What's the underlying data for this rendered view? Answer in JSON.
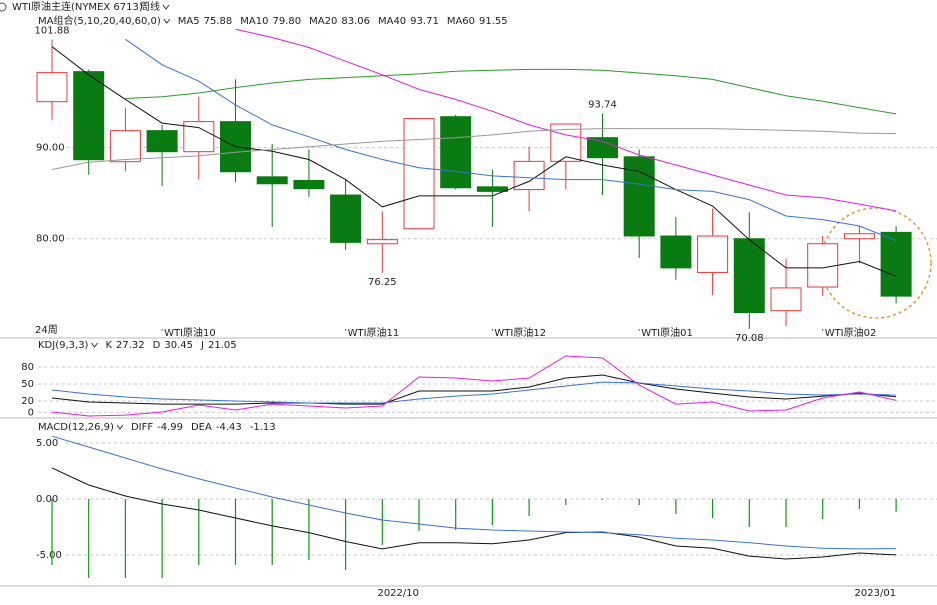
{
  "header": {
    "title": "WTI原油主连(NYMEX 6713)",
    "period": "周线"
  },
  "chart_data": [
    {
      "type": "candlestick",
      "title": "MA组合(5,10,20,40,60,0)",
      "period_label": "24周",
      "categories": [
        null,
        null,
        null,
        "WTI原油10",
        null,
        null,
        null,
        null,
        "WTI原油11",
        null,
        null,
        null,
        "WTI原油12",
        null,
        null,
        null,
        "WTI原油01",
        null,
        null,
        null,
        null,
        "WTI原油02",
        null,
        null
      ],
      "open": [
        95.05,
        98.35,
        88.46,
        91.87,
        89.56,
        92.86,
        86.8,
        86.4,
        84.8,
        79.45,
        81.1,
        93.4,
        85.7,
        85.4,
        88.5,
        91.1,
        89.0,
        80.3,
        76.3,
        80.0,
        72.1,
        74.7,
        80.0,
        80.7
      ],
      "high": [
        101.88,
        98.57,
        94.4,
        92.5,
        95.6,
        97.5,
        90.4,
        89.8,
        86.5,
        83.0,
        93.2,
        93.6,
        87.6,
        90.1,
        92.64,
        93.74,
        89.8,
        82.4,
        83.3,
        82.9,
        77.8,
        80.3,
        81.4,
        81.4
      ],
      "low": [
        93.08,
        87.03,
        87.4,
        85.8,
        86.5,
        86.2,
        81.3,
        84.6,
        78.8,
        76.25,
        81.1,
        85.4,
        81.3,
        83.0,
        85.4,
        84.8,
        77.9,
        75.5,
        73.8,
        70.08,
        70.4,
        73.7,
        77.3,
        72.9
      ],
      "close": [
        98.24,
        88.68,
        91.87,
        89.56,
        92.86,
        87.36,
        86.04,
        85.5,
        79.6,
        79.9,
        93.2,
        85.6,
        85.2,
        88.5,
        92.6,
        88.9,
        80.3,
        76.8,
        80.3,
        71.9,
        74.6,
        79.45,
        80.55,
        73.7
      ],
      "up_color": "#e8383d",
      "down_color": "#0a7a12",
      "series": [
        {
          "name": "MA5",
          "color": "#111111",
          "values": [
            101.1,
            98.0,
            95.3,
            92.7,
            92.2,
            90.1,
            89.6,
            88.7,
            86.5,
            83.5,
            84.7,
            84.7,
            84.7,
            86.3,
            89.0,
            88.1,
            87.4,
            85.4,
            83.6,
            79.9,
            76.8,
            76.8,
            77.5,
            75.88
          ]
        },
        {
          "name": "MA10",
          "color": "#3a73d8",
          "values": [
            null,
            null,
            101.9,
            99.1,
            97.3,
            94.7,
            92.5,
            91.2,
            89.8,
            88.7,
            87.8,
            87.4,
            86.9,
            86.7,
            86.5,
            86.5,
            86.0,
            85.4,
            85.2,
            84.3,
            82.5,
            82.1,
            81.4,
            79.8
          ],
          "value_labels": [
            null,
            null,
            null,
            null,
            null,
            null,
            null,
            null,
            null,
            null,
            null,
            null,
            null,
            null,
            null,
            null,
            null,
            null,
            null,
            null,
            null,
            null,
            null,
            "79.80"
          ]
        },
        {
          "name": "MA20",
          "color": "#e020e0",
          "values": [
            null,
            null,
            null,
            null,
            null,
            103.0,
            102.1,
            101.0,
            99.5,
            98.0,
            96.4,
            95.3,
            94.0,
            92.5,
            91.4,
            90.7,
            89.2,
            88.1,
            87.0,
            85.9,
            84.8,
            84.5,
            83.8,
            83.06
          ]
        },
        {
          "name": "MA40",
          "color": "#2a9a2a",
          "values": [
            null,
            null,
            95.4,
            95.6,
            96.0,
            96.6,
            97.1,
            97.5,
            97.7,
            97.9,
            98.1,
            98.4,
            98.5,
            98.6,
            98.6,
            98.5,
            98.2,
            97.9,
            97.5,
            96.6,
            95.7,
            95.1,
            94.4,
            93.71
          ]
        },
        {
          "name": "MA60",
          "color": "#999999",
          "values": [
            87.6,
            88.4,
            88.7,
            88.9,
            89.1,
            89.5,
            89.8,
            90.1,
            90.4,
            90.7,
            90.9,
            91.1,
            91.4,
            91.8,
            92.0,
            92.1,
            92.1,
            92.1,
            92.1,
            92.0,
            91.9,
            91.8,
            91.6,
            91.55
          ]
        }
      ],
      "ylim": [
        69.1,
        104.9
      ],
      "yticks": [
        {
          "value": 80,
          "label": "80.00"
        },
        {
          "value": 90,
          "label": "90.00"
        }
      ],
      "grid": true
    },
    {
      "type": "line",
      "title": "KDJ(9,3,3)",
      "series": [
        {
          "name": "K",
          "color": "#111111",
          "values": [
            25.2,
            18.2,
            16.4,
            14.6,
            14.6,
            14.6,
            16.4,
            16.4,
            14.6,
            14.6,
            37.6,
            37.6,
            37.6,
            44.6,
            60.5,
            65.8,
            51.7,
            41.1,
            34.0,
            27.0,
            23.5,
            28.7,
            34.0,
            27.32
          ]
        },
        {
          "name": "D",
          "color": "#3a73d8",
          "values": [
            39.3,
            32.3,
            27.0,
            23.5,
            21.7,
            19.9,
            18.2,
            16.4,
            16.4,
            16.4,
            23.5,
            28.7,
            32.3,
            39.3,
            46.4,
            53.4,
            51.7,
            46.4,
            41.1,
            37.6,
            32.3,
            30.5,
            32.3,
            30.45
          ]
        },
        {
          "name": "J",
          "color": "#e020e0",
          "values": [
            0.5,
            -6.5,
            -4.8,
            0.5,
            12.9,
            4.1,
            14.6,
            11.1,
            7.6,
            11.1,
            62.3,
            60.5,
            55.2,
            60.5,
            99.3,
            95.8,
            48.1,
            14.6,
            18.2,
            2.3,
            4.1,
            25.2,
            35.8,
            21.05
          ]
        }
      ],
      "ylim": [
        -10,
        106.4
      ],
      "yticks": [
        0,
        20,
        50,
        80
      ],
      "grid": true
    },
    {
      "type": "line",
      "title": "MACD(12,26,9)",
      "categories": [
        null,
        null,
        null,
        null,
        null,
        null,
        null,
        null,
        null,
        null,
        "2022/10",
        null,
        null,
        null,
        null,
        null,
        null,
        null,
        null,
        null,
        null,
        null,
        null,
        "2023/01"
      ],
      "series": [
        {
          "name": "DIFF",
          "color": "#111111",
          "values": [
            2.77,
            1.25,
            0.27,
            -0.45,
            -0.98,
            -1.7,
            -2.4,
            -3.0,
            -3.8,
            -4.46,
            -3.9,
            -3.9,
            -4.0,
            -3.66,
            -3.0,
            -2.95,
            -3.4,
            -4.2,
            -4.4,
            -5.1,
            -5.36,
            -5.18,
            -4.82,
            -4.99
          ]
        },
        {
          "name": "DEA",
          "color": "#3a73d8",
          "values": [
            5.6,
            4.64,
            3.66,
            2.68,
            1.79,
            0.98,
            0.18,
            -0.54,
            -1.25,
            -1.88,
            -2.23,
            -2.6,
            -2.77,
            -2.86,
            -2.95,
            -3.0,
            -3.2,
            -3.5,
            -3.66,
            -3.9,
            -4.2,
            -4.4,
            -4.46,
            -4.43
          ]
        },
        {
          "type": "bar",
          "color": "#0a9a12",
          "values": [
            -5.89,
            -7.05,
            -7.05,
            -7.05,
            -5.89,
            -5.89,
            -5.89,
            -5.45,
            -6.34,
            -4.11,
            -2.86,
            -2.77,
            -2.32,
            -1.52,
            -0.54,
            -0.09,
            -0.54,
            -1.34,
            -1.7,
            -2.5,
            -2.5,
            -1.79,
            -0.89,
            -1.13
          ]
        }
      ],
      "ylim": [
        -7.68,
        5.89
      ],
      "yticks": [
        {
          "value": -5,
          "label": "-5.00"
        },
        {
          "value": 0,
          "label": "0.00"
        },
        {
          "value": 5,
          "label": "5.00"
        }
      ],
      "grid": true
    }
  ]
}
